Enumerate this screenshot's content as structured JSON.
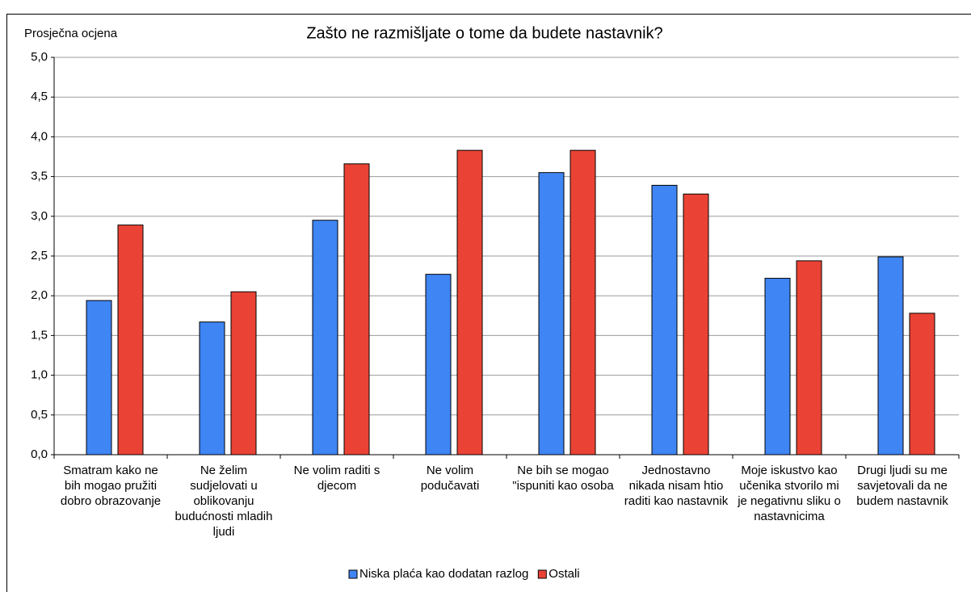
{
  "chart_data": {
    "type": "bar",
    "title": "Zašto ne razmišljate o tome da budete nastavnik?",
    "y_label": "Prosječna ocjena",
    "categories": [
      "Smatram kako ne bih mogao pružiti dobro obrazovanje",
      "Ne želim sudjelovati u oblikovanju budućnosti mladih ljudi",
      "Ne volim raditi s djecom",
      "Ne volim podučavati",
      "Ne bih se mogao \"ispuniti kao osoba",
      "Jednostavno nikada nisam htio raditi kao nastavnik",
      "Moje iskustvo kao učenika stvorilo mi je negativnu sliku o nastavnicima",
      "Drugi ljudi su me savjetovali da ne budem nastavnik"
    ],
    "series": [
      {
        "name": "Niska plaća kao dodatan razlog",
        "color": "#3f85f4",
        "values": [
          1.94,
          1.67,
          2.95,
          2.27,
          3.55,
          3.39,
          2.22,
          2.49
        ]
      },
      {
        "name": "Ostali",
        "color": "#ea4335",
        "values": [
          2.89,
          2.05,
          3.66,
          3.83,
          3.83,
          3.28,
          2.44,
          1.78
        ]
      }
    ],
    "ylim": [
      0,
      5
    ],
    "yticks": [
      {
        "value": 0,
        "label": "0,0"
      },
      {
        "value": 0.5,
        "label": "0,5"
      },
      {
        "value": 1,
        "label": "1,0"
      },
      {
        "value": 1.5,
        "label": "1,5"
      },
      {
        "value": 2,
        "label": "2,0"
      },
      {
        "value": 2.5,
        "label": "2,5"
      },
      {
        "value": 3,
        "label": "3,0"
      },
      {
        "value": 3.5,
        "label": "3,5"
      },
      {
        "value": 4,
        "label": "4,0"
      },
      {
        "value": 4.5,
        "label": "4,5"
      },
      {
        "value": 5,
        "label": "5,0"
      }
    ],
    "grid": true,
    "legend": "bottom"
  }
}
